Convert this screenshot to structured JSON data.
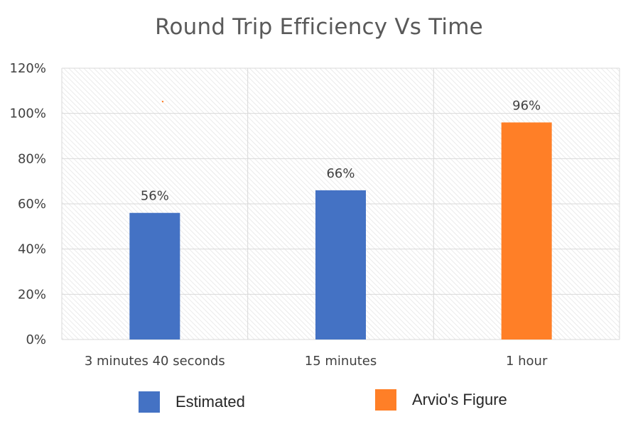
{
  "chart_data": {
    "type": "bar",
    "title": "Round Trip Efficiency Vs Time",
    "xlabel": "",
    "ylabel": "",
    "categories": [
      "3 minutes 40 seconds",
      "15 minutes",
      "1 hour"
    ],
    "values": [
      0.56,
      0.66,
      0.96
    ],
    "data_labels": [
      "56%",
      "66%",
      "96%"
    ],
    "bar_series": [
      "Estimated",
      "Estimated",
      "Arvio's Figure"
    ],
    "ylim": [
      0,
      1.2
    ],
    "yticks": [
      0,
      0.2,
      0.4,
      0.6,
      0.8,
      1.0,
      1.2
    ],
    "ytick_labels": [
      "0%",
      "20%",
      "40%",
      "60%",
      "80%",
      "100%",
      "120%"
    ],
    "grid": true,
    "legend_position": "bottom",
    "series": [
      {
        "name": "Estimated",
        "color": "#4472C4"
      },
      {
        "name": "Arvio's Figure",
        "color": "#FF7F27"
      }
    ]
  }
}
